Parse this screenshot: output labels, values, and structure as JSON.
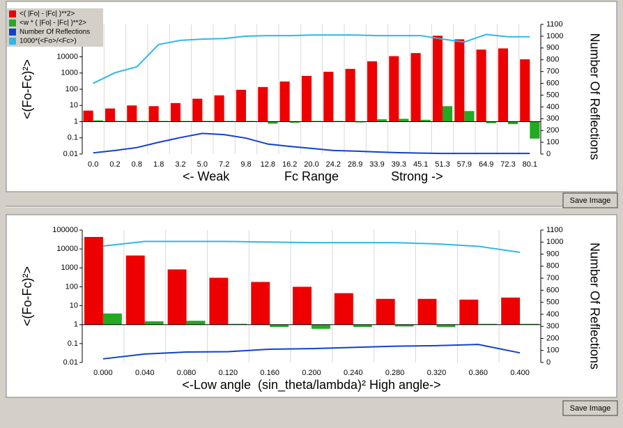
{
  "chart_data": [
    {
      "type": "bar",
      "ylabel": "<(Fo-Fc)²>",
      "y2label": "Number Of Reflections",
      "xlabel": [
        "<- Weak",
        "Fc Range",
        "Strong ->"
      ],
      "categories": [
        "0.0",
        "0.2",
        "0.8",
        "1.8",
        "3.2",
        "5.0",
        "7.2",
        "9.8",
        "12.8",
        "16.2",
        "20.0",
        "24.2",
        "28.9",
        "33.9",
        "39.3",
        "45.1",
        "51.3",
        "57.9",
        "64.9",
        "72.3",
        "80.1"
      ],
      "yscale": "log",
      "ylim": [
        0.01,
        1000000
      ],
      "yticks": [
        0.01,
        0.1,
        1,
        10,
        100,
        1000,
        10000
      ],
      "y2lim": [
        0,
        1100
      ],
      "y2ticks": [
        0,
        100,
        200,
        300,
        400,
        500,
        600,
        700,
        800,
        900,
        1000,
        1100
      ],
      "grid": true,
      "legend": "top-left",
      "series": [
        {
          "name": "<( |Fo| - |Fc| )**2>",
          "color": "#ee0000",
          "values": [
            4.8,
            6.5,
            10,
            9,
            14,
            26,
            42,
            92,
            137,
            300,
            660,
            1200,
            1800,
            5300,
            11000,
            17000,
            200000,
            120000,
            28000,
            33000,
            7000
          ]
        },
        {
          "name": "<w * ( |Fo| - |Fc| )**2>",
          "color": "#22aa22",
          "values": [
            1.2,
            1.1,
            1.1,
            1.1,
            1.1,
            1.1,
            1.1,
            1.1,
            0.75,
            0.85,
            1.1,
            1.1,
            0.9,
            1.4,
            1.5,
            1.3,
            9,
            4.5,
            0.8,
            0.7,
            0.09
          ]
        },
        {
          "name": "Number Of Reflections",
          "color": "#1040d0",
          "axis": "y2",
          "values": [
            10,
            30,
            55,
            100,
            140,
            175,
            165,
            135,
            85,
            65,
            48,
            30,
            25,
            18,
            12,
            8,
            5,
            5,
            5,
            5,
            5
          ]
        },
        {
          "name": "1000*(<Fo>/<Fc>)",
          "color": "#2cb8e8",
          "axis": "y2",
          "values": [
            600,
            690,
            740,
            930,
            965,
            975,
            980,
            1000,
            1005,
            1005,
            1010,
            1010,
            1010,
            1005,
            1005,
            1005,
            975,
            950,
            1015,
            995,
            995
          ]
        }
      ]
    },
    {
      "type": "bar",
      "ylabel": "<(Fo-Fc)²>",
      "y2label": "Number Of Reflections",
      "xlabel": "<-Low angle  (sin_theta/lambda)² High angle->",
      "categories": [
        "0.000",
        "0.040",
        "0.080",
        "0.120",
        "0.160",
        "0.200",
        "0.240",
        "0.280",
        "0.320",
        "0.360",
        "0.400"
      ],
      "yscale": "log",
      "ylim": [
        0.01,
        100000
      ],
      "yticks": [
        0.01,
        0.1,
        1,
        10,
        100,
        1000,
        10000,
        100000
      ],
      "y2lim": [
        0,
        1100
      ],
      "y2ticks": [
        0,
        100,
        200,
        300,
        400,
        500,
        600,
        700,
        800,
        900,
        1000,
        1100
      ],
      "grid": true,
      "series": [
        {
          "color": "#ee0000",
          "values": [
            43000,
            4500,
            830,
            300,
            180,
            100,
            46,
            23,
            23,
            21,
            27
          ]
        },
        {
          "color": "#22aa22",
          "values": [
            3.9,
            1.5,
            1.6,
            1.1,
            0.75,
            0.6,
            0.75,
            0.8,
            0.75,
            1.1,
            1.1
          ]
        },
        {
          "color": "#1040d0",
          "axis": "y2",
          "values": [
            30,
            70,
            87,
            90,
            110,
            115,
            125,
            135,
            140,
            150,
            80
          ]
        },
        {
          "color": "#2cb8e8",
          "axis": "y2",
          "values": [
            967,
            1005,
            1005,
            1005,
            1000,
            995,
            995,
            995,
            985,
            965,
            915
          ]
        }
      ]
    }
  ],
  "buttons": [
    "Save Image",
    "Save Image"
  ]
}
